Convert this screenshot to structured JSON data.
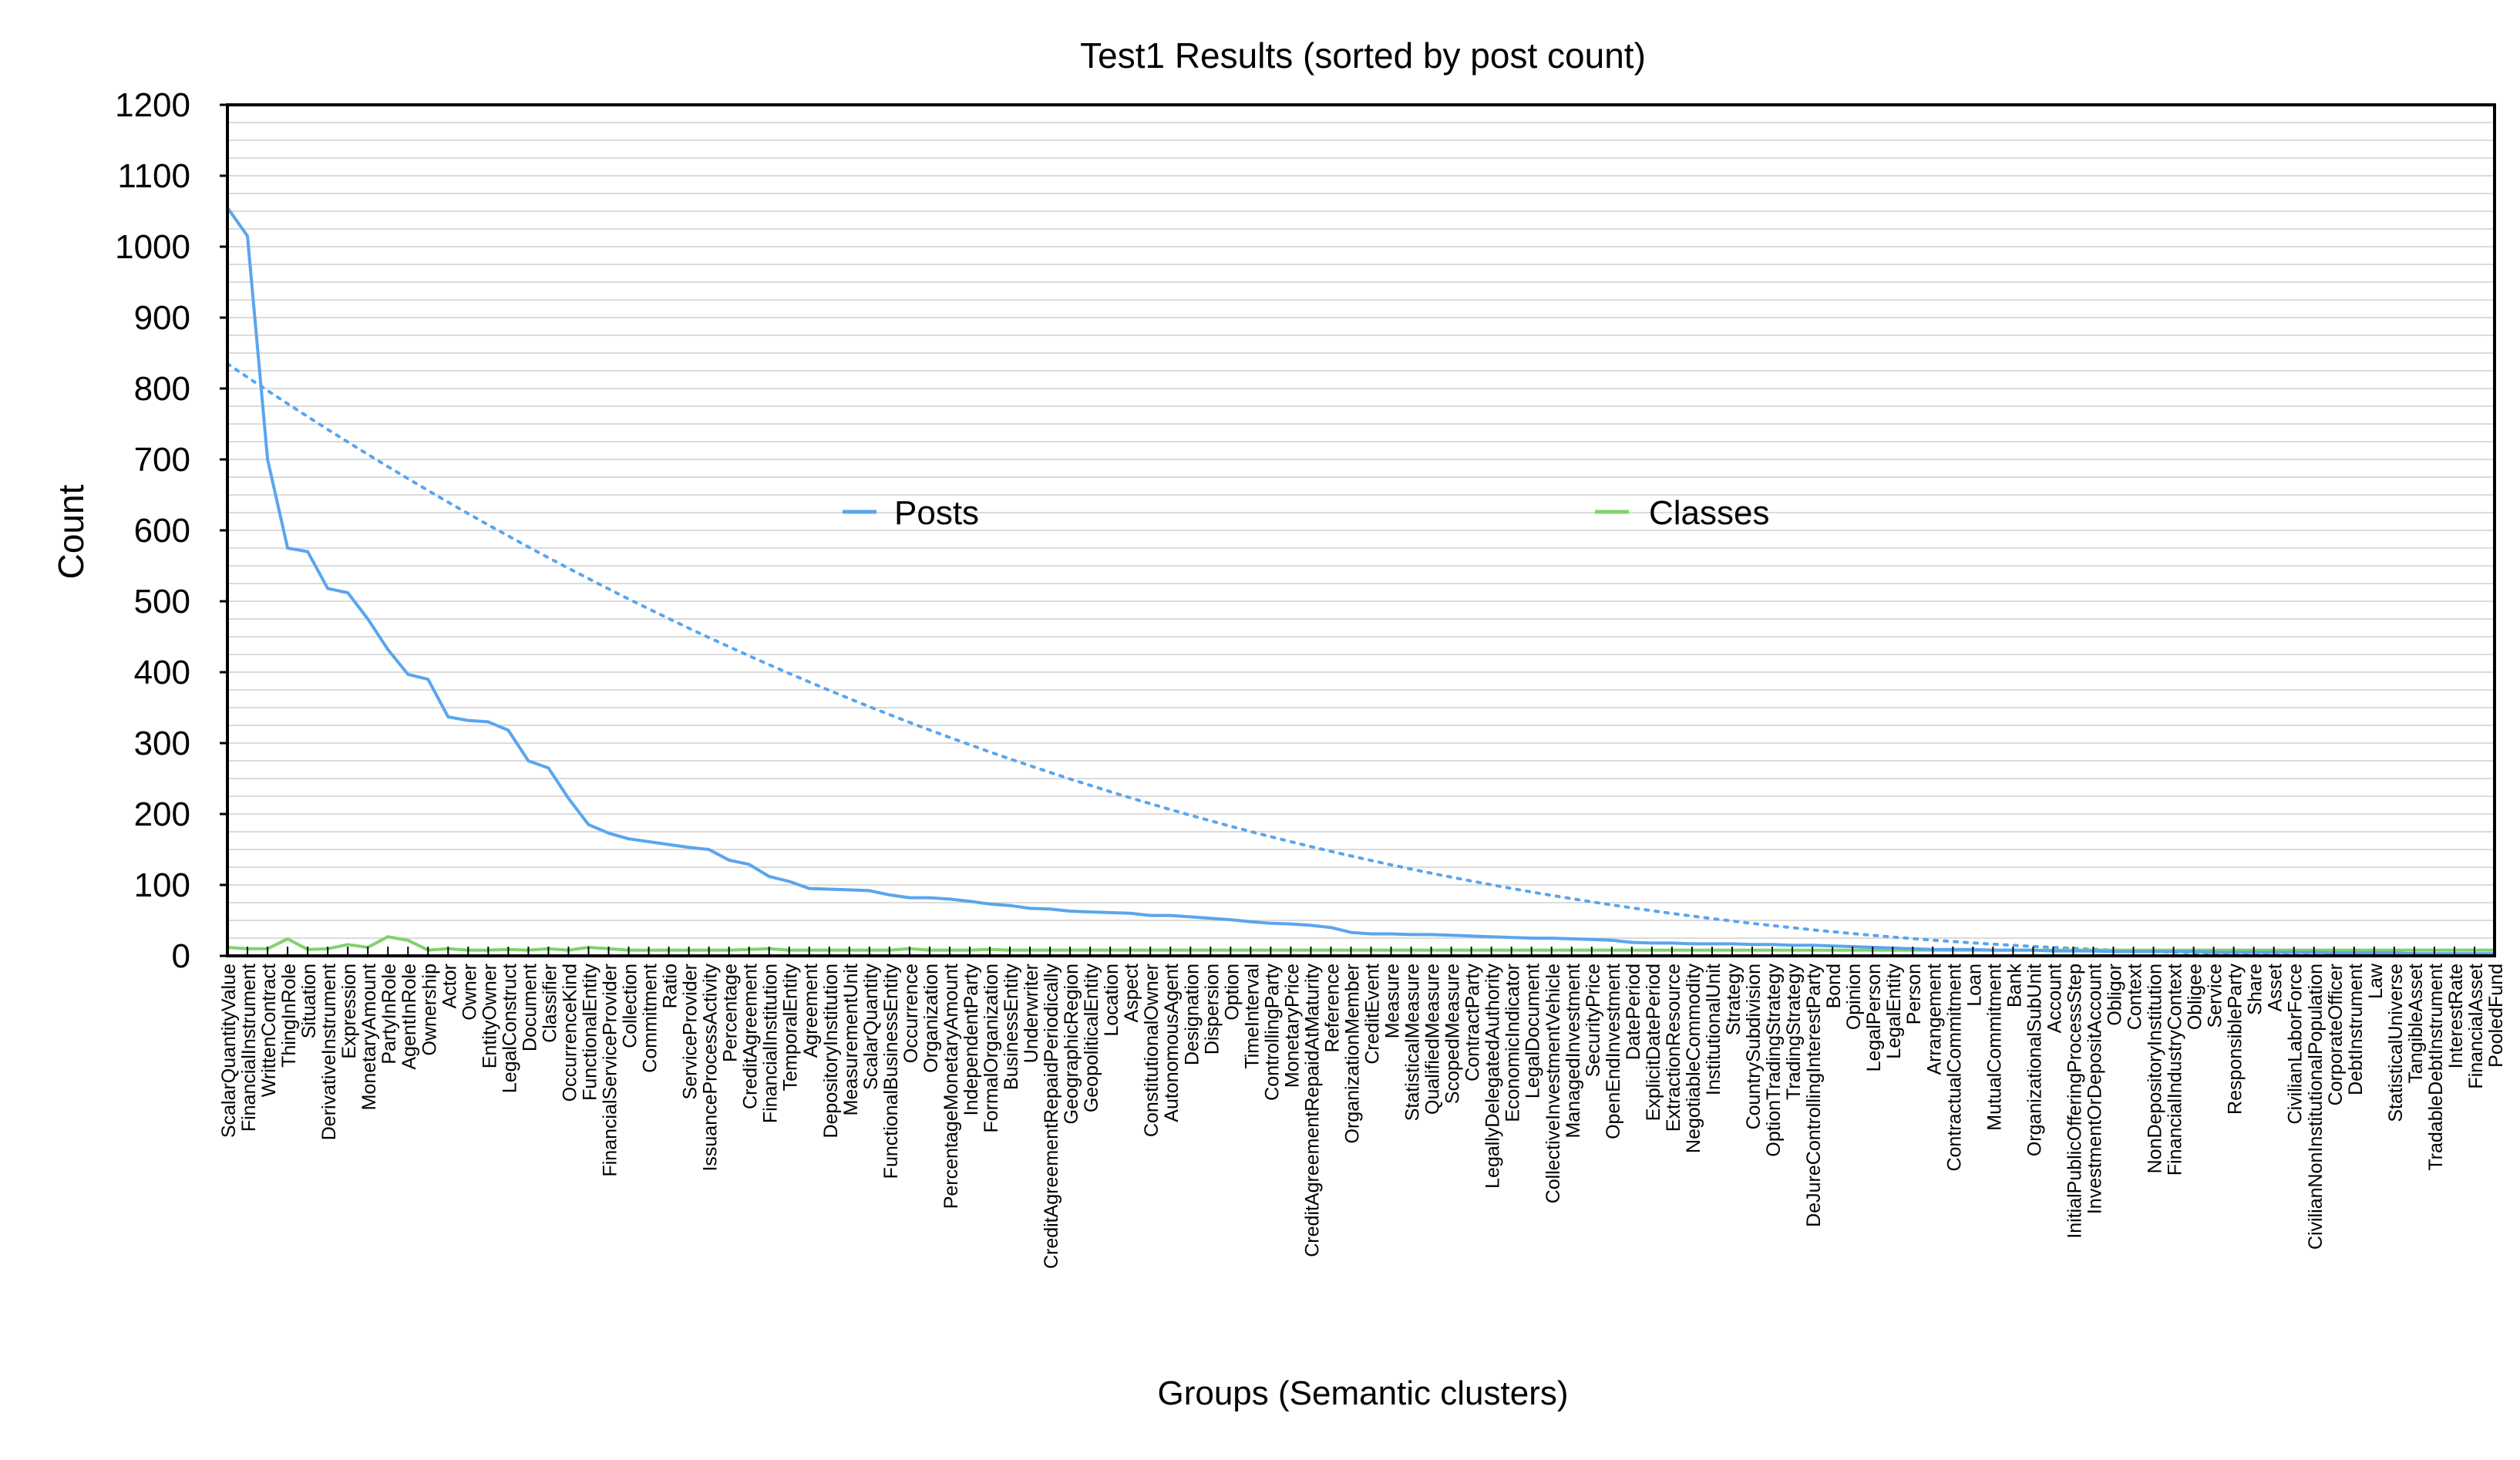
{
  "chart_data": {
    "type": "line",
    "title": "Test1 Results (sorted by post count)",
    "xlabel": "Groups (Semantic clusters)",
    "ylabel": "Count",
    "ylim": [
      0,
      1200
    ],
    "yticks": [
      0,
      100,
      200,
      300,
      400,
      500,
      600,
      700,
      800,
      900,
      1000,
      1100,
      1200
    ],
    "grid": true,
    "legend": "inside-middle",
    "categories": [
      "ScalarQuantityValue",
      "FinancialInstrument",
      "WrittenContract",
      "ThingInRole",
      "Situation",
      "DerivativeInstrument",
      "Expression",
      "MonetaryAmount",
      "PartyInRole",
      "AgentInRole",
      "Ownership",
      "Actor",
      "Owner",
      "EntityOwner",
      "LegalConstruct",
      "Document",
      "Classifier",
      "OccurrenceKind",
      "FunctionalEntity",
      "FinancialServiceProvider",
      "Collection",
      "Commitment",
      "Ratio",
      "ServiceProvider",
      "IssuanceProcessActivity",
      "Percentage",
      "CreditAgreement",
      "FinancialInstitution",
      "TemporalEntity",
      "Agreement",
      "DepositoryInstitution",
      "MeasurementUnit",
      "ScalarQuantity",
      "FunctionalBusinessEntity",
      "Occurrence",
      "Organization",
      "PercentageMonetaryAmount",
      "IndependentParty",
      "FormalOrganization",
      "BusinessEntity",
      "Underwriter",
      "CreditAgreementRepaidPeriodically",
      "GeographicRegion",
      "GeopoliticalEntity",
      "Location",
      "Aspect",
      "ConstitutionalOwner",
      "AutonomousAgent",
      "Designation",
      "Dispersion",
      "Option",
      "TimeInterval",
      "ControllingParty",
      "MonetaryPrice",
      "CreditAgreementRepaidAtMaturity",
      "Reference",
      "OrganizationMember",
      "CreditEvent",
      "Measure",
      "StatisticalMeasure",
      "QualifiedMeasure",
      "ScopedMeasure",
      "ContractParty",
      "LegallyDelegatedAuthority",
      "EconomicIndicator",
      "LegalDocument",
      "CollectiveInvestmentVehicle",
      "ManagedInvestment",
      "SecurityPrice",
      "OpenEndInvestment",
      "DatePeriod",
      "ExplicitDatePeriod",
      "ExtractionResource",
      "NegotiableCommodity",
      "InstitutionalUnit",
      "Strategy",
      "CountrySubdivision",
      "OptionTradingStrategy",
      "TradingStrategy",
      "DeJureControllingInterestParty",
      "Bond",
      "Opinion",
      "LegalPerson",
      "LegalEntity",
      "Person",
      "Arrangement",
      "ContractualCommitment",
      "Loan",
      "MutualCommitment",
      "Bank",
      "OrganizationalSubUnit",
      "Account",
      "InitialPublicOfferingProcessStep",
      "InvestmentOrDepositAccount",
      "Obligor",
      "Context",
      "NonDepositoryInstitution",
      "FinancialIndustryContext",
      "Obligee",
      "Service",
      "ResponsibleParty",
      "Share",
      "Asset",
      "CivilianLaborForce",
      "CivilianNonInstitutionalPopulation",
      "CorporateOfficer",
      "DebtInstrument",
      "Law",
      "StatisticalUniverse",
      "TangibleAsset",
      "TradableDebtInstrument",
      "InterestRate",
      "FinancialAsset",
      "PooledFund"
    ],
    "series": [
      {
        "name": "Posts",
        "color": "#5aa5ee",
        "values": [
          1055,
          1015,
          700,
          575,
          570,
          518,
          512,
          475,
          432,
          397,
          390,
          337,
          332,
          330,
          318,
          275,
          265,
          222,
          185,
          173,
          165,
          161,
          157,
          153,
          150,
          135,
          129,
          112,
          105,
          95,
          94,
          93,
          92,
          86,
          82,
          82,
          80,
          77,
          73,
          71,
          67,
          66,
          63,
          62,
          61,
          60,
          57,
          57,
          55,
          53,
          51,
          48,
          46,
          45,
          43,
          40,
          33,
          31,
          31,
          30,
          30,
          29,
          28,
          27,
          26,
          25,
          25,
          24,
          23,
          22,
          19,
          18,
          18,
          17,
          17,
          17,
          16,
          16,
          15,
          15,
          14,
          13,
          12,
          11,
          10,
          9,
          9,
          9,
          8,
          8,
          8,
          7,
          7,
          7,
          6,
          6,
          6,
          6,
          6,
          5,
          5,
          5,
          5,
          5,
          5,
          4,
          4,
          4,
          4,
          3,
          3,
          3,
          3,
          3
        ]
      },
      {
        "name": "Classes",
        "color": "#7fd36b",
        "values": [
          12,
          10,
          10,
          24,
          9,
          10,
          16,
          12,
          27,
          22,
          8,
          10,
          8,
          8,
          9,
          8,
          10,
          8,
          12,
          10,
          8,
          8,
          8,
          8,
          8,
          8,
          9,
          10,
          8,
          8,
          8,
          8,
          8,
          8,
          10,
          8,
          8,
          8,
          9,
          8,
          8,
          8,
          8,
          8,
          8,
          8,
          8,
          8,
          8,
          8,
          8,
          8,
          8,
          8,
          8,
          8,
          8,
          8,
          8,
          8,
          8,
          8,
          8,
          8,
          8,
          8,
          8,
          8,
          8,
          8,
          8,
          8,
          8,
          8,
          8,
          8,
          8,
          8,
          8,
          8,
          8,
          8,
          8,
          8,
          8,
          8,
          8,
          8,
          8,
          8,
          8,
          8,
          8,
          8,
          8,
          8,
          8,
          8,
          8,
          8,
          8,
          8,
          8,
          8,
          8,
          8,
          8,
          8,
          8,
          8,
          8,
          8,
          8,
          8
        ]
      }
    ],
    "trendline": {
      "series": "Posts",
      "style": "dotted",
      "color": "#5aa5ee",
      "start": 835,
      "end": 0
    }
  }
}
